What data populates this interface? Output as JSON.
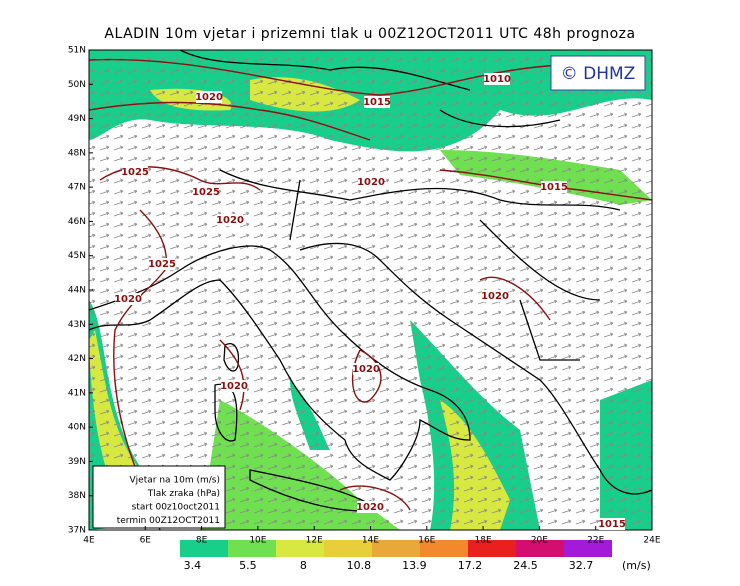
{
  "title": "ALADIN 10m vjetar i prizemni tlak u 00Z12OCT2011 UTC 48h prognoza",
  "watermark": "© DHMZ",
  "map": {
    "lat_labels": [
      "51N",
      "50N",
      "49N",
      "48N",
      "47N",
      "46N",
      "45N",
      "44N",
      "43N",
      "42N",
      "41N",
      "40N",
      "39N",
      "38N",
      "37N"
    ],
    "lon_labels": [
      "4E",
      "6E",
      "8E",
      "10E",
      "12E",
      "14E",
      "16E",
      "18E",
      "20E",
      "22E",
      "24E"
    ],
    "isobar_labels": [
      "1010",
      "1015",
      "1020",
      "1020",
      "1015",
      "1025",
      "1025",
      "1020",
      "1025",
      "1020",
      "1020",
      "1020",
      "1020",
      "1020",
      "1015"
    ]
  },
  "info_box": {
    "lines": [
      "Vjetar na 10m (m/s)",
      "Tlak zraka (hPa)",
      "start 00z10oct2011",
      "termin 00Z12OCT2011"
    ]
  },
  "colorbar": {
    "labels": [
      "3.4",
      "5.5",
      "8",
      "10.8",
      "13.9",
      "17.2",
      "24.5",
      "32.7"
    ],
    "unit": "(m/s)",
    "colors": [
      "#17cf8a",
      "#6fe04f",
      "#d7e841",
      "#e8cf3a",
      "#e8a83a",
      "#f08a2c",
      "#e8201e",
      "#d40e6e",
      "#a31ad8"
    ]
  }
}
